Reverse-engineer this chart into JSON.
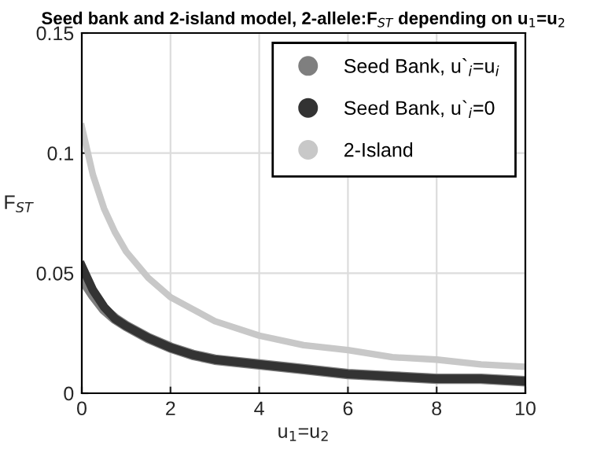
{
  "chart_data": {
    "type": "line",
    "title": "Seed bank and 2-island model, 2-allele:F$_{ST}$ depending on u$_{1}$=u$_{2}$",
    "xlabel": "u$_{1}$=u$_{2}$",
    "ylabel": "F$_{ST}$",
    "x": [
      0,
      0.25,
      0.5,
      0.75,
      1,
      1.5,
      2,
      2.5,
      3,
      4,
      5,
      6,
      7,
      8,
      9,
      10
    ],
    "series": [
      {
        "name": "Seed Bank, u`$_{i}$=u$_{i}$",
        "color": "#7f7f7f",
        "values": [
          0.048,
          0.041,
          0.035,
          0.031,
          0.028,
          0.023,
          0.019,
          0.016,
          0.014,
          0.012,
          0.01,
          0.008,
          0.007,
          0.006,
          0.006,
          0.005
        ]
      },
      {
        "name": "Seed Bank, u`$_{i}$=0",
        "color": "#333333",
        "values": [
          0.053,
          0.043,
          0.036,
          0.031,
          0.028,
          0.023,
          0.019,
          0.016,
          0.014,
          0.012,
          0.01,
          0.008,
          0.007,
          0.006,
          0.006,
          0.005
        ]
      },
      {
        "name": "2-Island",
        "color": "#c8c8c8",
        "values": [
          0.111,
          0.091,
          0.077,
          0.067,
          0.059,
          0.048,
          0.04,
          0.035,
          0.03,
          0.024,
          0.02,
          0.018,
          0.015,
          0.014,
          0.012,
          0.011
        ]
      }
    ],
    "xlim": [
      0,
      10
    ],
    "xticks": [
      0,
      2,
      4,
      6,
      8,
      10
    ],
    "ylim": [
      0,
      0.15
    ],
    "yticks": [
      0,
      0.05,
      0.1,
      0.15
    ],
    "grid": true,
    "legend": "top right",
    "marker": "none",
    "line_style": "solid"
  }
}
